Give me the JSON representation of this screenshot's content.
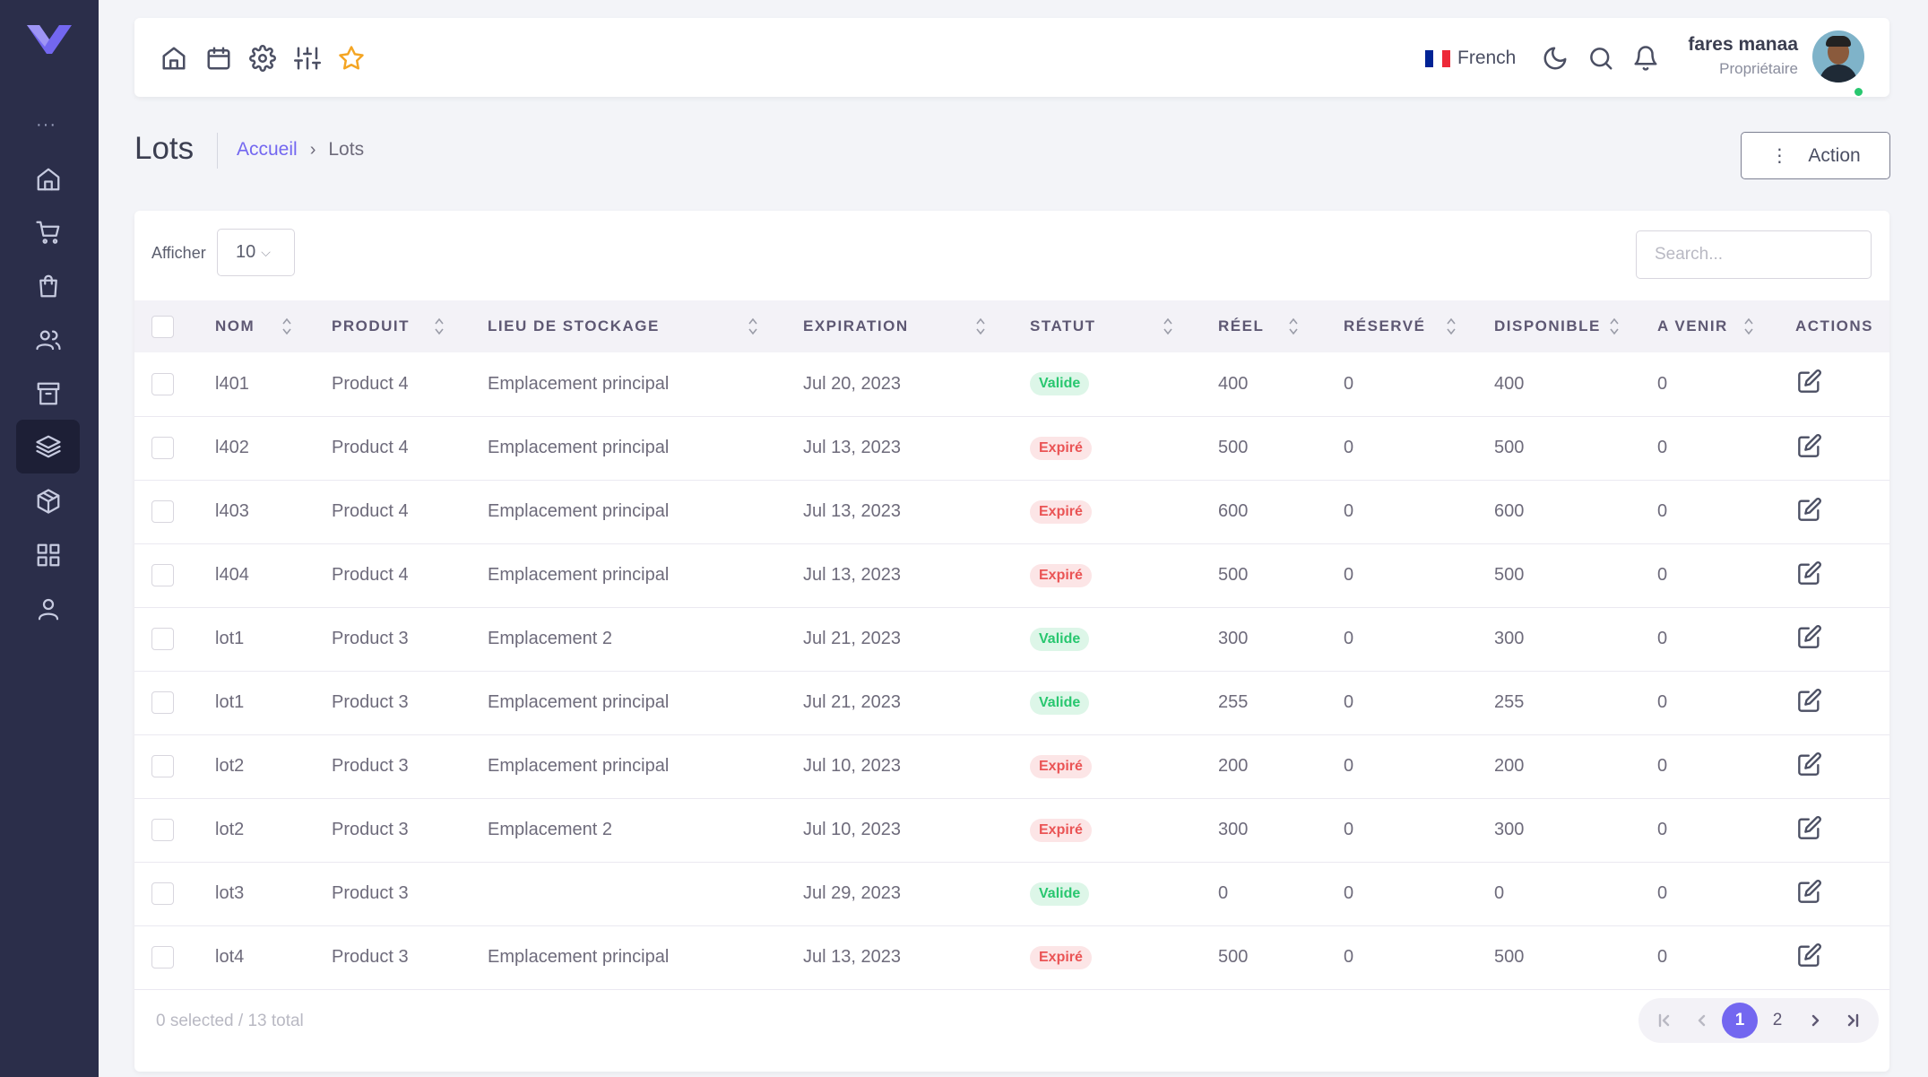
{
  "header": {
    "language": "French",
    "user_name": "fares manaa",
    "user_role": "Propriétaire"
  },
  "page": {
    "title": "Lots",
    "breadcrumb_home": "Accueil",
    "breadcrumb_current": "Lots",
    "action_label": "Action"
  },
  "table_controls": {
    "show_label": "Afficher",
    "page_size": "10",
    "search_placeholder": "Search..."
  },
  "columns": [
    "NOM",
    "PRODUIT",
    "LIEU DE STOCKAGE",
    "EXPIRATION",
    "STATUT",
    "RÉEL",
    "RÉSERVÉ",
    "DISPONIBLE",
    "A VENIR",
    "ACTIONS"
  ],
  "rows": [
    {
      "name": "l401",
      "product": "Product 4",
      "location": "Emplacement principal",
      "expiration": "Jul 20, 2023",
      "status": "Valide",
      "status_type": "valid",
      "real": "400",
      "reserved": "0",
      "available": "400",
      "upcoming": "0"
    },
    {
      "name": "l402",
      "product": "Product 4",
      "location": "Emplacement principal",
      "expiration": "Jul 13, 2023",
      "status": "Expiré",
      "status_type": "expired",
      "real": "500",
      "reserved": "0",
      "available": "500",
      "upcoming": "0"
    },
    {
      "name": "l403",
      "product": "Product 4",
      "location": "Emplacement principal",
      "expiration": "Jul 13, 2023",
      "status": "Expiré",
      "status_type": "expired",
      "real": "600",
      "reserved": "0",
      "available": "600",
      "upcoming": "0"
    },
    {
      "name": "l404",
      "product": "Product 4",
      "location": "Emplacement principal",
      "expiration": "Jul 13, 2023",
      "status": "Expiré",
      "status_type": "expired",
      "real": "500",
      "reserved": "0",
      "available": "500",
      "upcoming": "0"
    },
    {
      "name": "lot1",
      "product": "Product 3",
      "location": "Emplacement 2",
      "expiration": "Jul 21, 2023",
      "status": "Valide",
      "status_type": "valid",
      "real": "300",
      "reserved": "0",
      "available": "300",
      "upcoming": "0"
    },
    {
      "name": "lot1",
      "product": "Product 3",
      "location": "Emplacement principal",
      "expiration": "Jul 21, 2023",
      "status": "Valide",
      "status_type": "valid",
      "real": "255",
      "reserved": "0",
      "available": "255",
      "upcoming": "0"
    },
    {
      "name": "lot2",
      "product": "Product 3",
      "location": "Emplacement principal",
      "expiration": "Jul 10, 2023",
      "status": "Expiré",
      "status_type": "expired",
      "real": "200",
      "reserved": "0",
      "available": "200",
      "upcoming": "0"
    },
    {
      "name": "lot2",
      "product": "Product 3",
      "location": "Emplacement 2",
      "expiration": "Jul 10, 2023",
      "status": "Expiré",
      "status_type": "expired",
      "real": "300",
      "reserved": "0",
      "available": "300",
      "upcoming": "0"
    },
    {
      "name": "lot3",
      "product": "Product 3",
      "location": "",
      "expiration": "Jul 29, 2023",
      "status": "Valide",
      "status_type": "valid",
      "real": "0",
      "reserved": "0",
      "available": "0",
      "upcoming": "0"
    },
    {
      "name": "lot4",
      "product": "Product 3",
      "location": "Emplacement principal",
      "expiration": "Jul 13, 2023",
      "status": "Expiré",
      "status_type": "expired",
      "real": "500",
      "reserved": "0",
      "available": "500",
      "upcoming": "0"
    }
  ],
  "footer": {
    "selection_info": "0 selected / 13 total",
    "pages": [
      "1",
      "2"
    ],
    "current_page": "1"
  },
  "colors": {
    "sidebar": "#2b2e4a",
    "accent": "#7367f0",
    "valid": "#28c76f",
    "expired": "#ea5455",
    "star": "#f4a523"
  },
  "icons": {
    "sidebar": [
      "home-icon",
      "cart-icon",
      "shopping-bag-icon",
      "users-icon",
      "archive-icon",
      "layers-icon",
      "box-icon",
      "grid-icon",
      "user-icon"
    ],
    "topbar_left": [
      "home-icon",
      "calendar-icon",
      "gear-icon",
      "sliders-icon",
      "star-icon"
    ],
    "topbar_right": [
      "moon-icon",
      "search-icon",
      "bell-icon"
    ]
  }
}
